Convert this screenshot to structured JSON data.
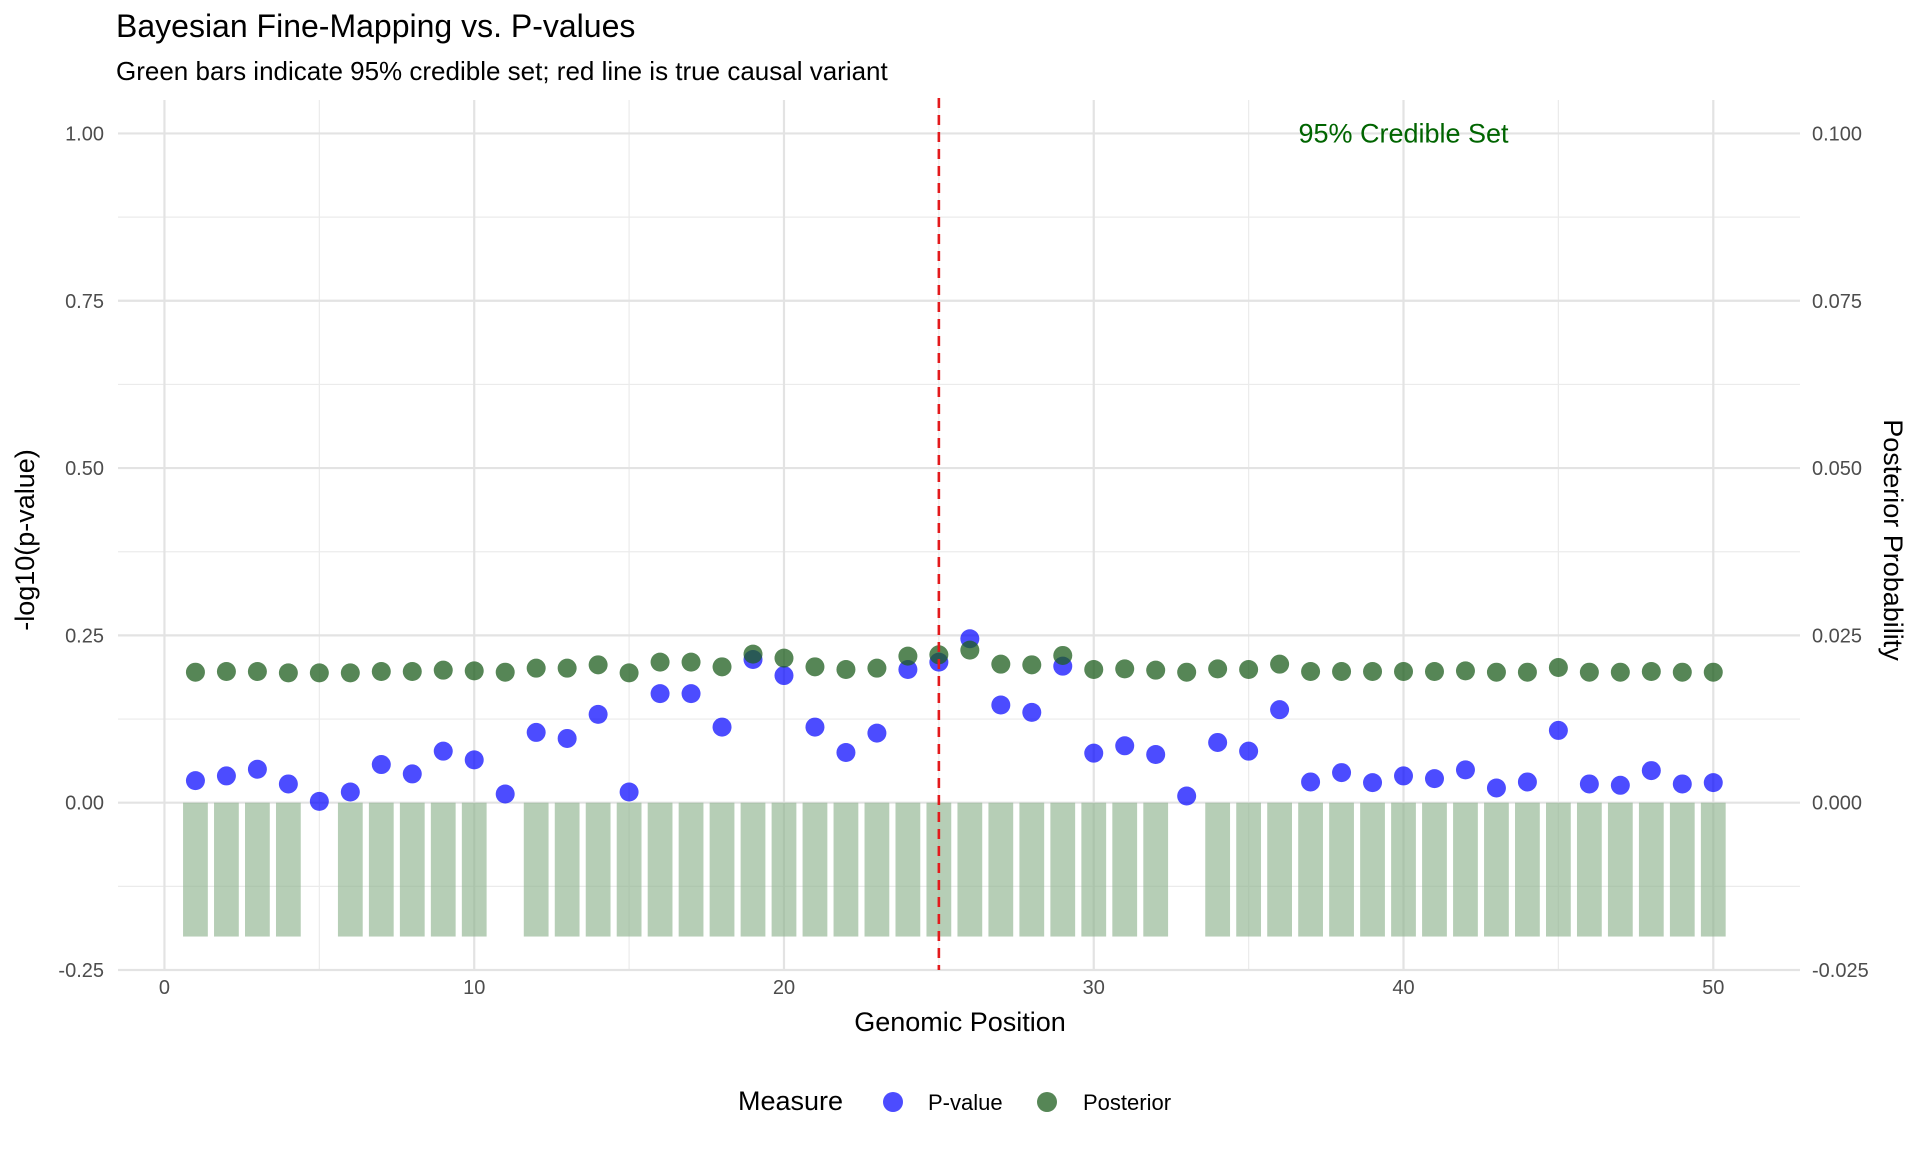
{
  "chart_data": {
    "type": "scatter",
    "title": "Bayesian Fine-Mapping vs. P-values",
    "subtitle": "Green bars indicate 95% credible set; red line is true causal variant",
    "xlabel": "Genomic Position",
    "ylabel": "-log10(p-value)",
    "y2label": "Posterior Probability",
    "xlim": [
      -1.5,
      52.8
    ],
    "ylim": [
      -0.25,
      1.05
    ],
    "y2lim": [
      -0.025,
      0.105
    ],
    "x_ticks": [
      0,
      10,
      20,
      30,
      40,
      50
    ],
    "y_ticks": [
      -0.25,
      0.0,
      0.25,
      0.5,
      0.75,
      1.0
    ],
    "y_tick_labels": [
      "-0.25",
      "0.00",
      "0.25",
      "0.50",
      "0.75",
      "1.00"
    ],
    "y2_tick_labels": [
      "-0.025",
      "0.000",
      "0.025",
      "0.050",
      "0.075",
      "0.100"
    ],
    "grid": true,
    "legend_position": "bottom",
    "legend": {
      "title": "Measure",
      "items": [
        {
          "label": "P-value",
          "color": "#0000FF"
        },
        {
          "label": "Posterior",
          "color": "#1E5E1E"
        }
      ]
    },
    "annotation": {
      "text": "95% Credible Set",
      "x": 40,
      "y": 1.0,
      "color": "#006400"
    },
    "causal_variant_x": 25,
    "causal_line_color": "#E31A1C",
    "credible_set_bar": {
      "bottom": -0.2,
      "top": 0.0,
      "color": "#8FB48F"
    },
    "credible_set_positions": [
      1,
      2,
      3,
      4,
      6,
      7,
      8,
      9,
      10,
      12,
      13,
      14,
      15,
      16,
      17,
      18,
      19,
      20,
      21,
      22,
      23,
      24,
      25,
      26,
      27,
      28,
      29,
      30,
      31,
      32,
      34,
      35,
      36,
      37,
      38,
      39,
      40,
      41,
      42,
      43,
      44,
      45,
      46,
      47,
      48,
      49,
      50
    ],
    "series": [
      {
        "name": "P-value",
        "color": "#0000FF",
        "x": [
          1,
          2,
          3,
          4,
          5,
          6,
          7,
          8,
          9,
          10,
          11,
          12,
          13,
          14,
          15,
          16,
          17,
          18,
          19,
          20,
          21,
          22,
          23,
          24,
          25,
          26,
          27,
          28,
          29,
          30,
          31,
          32,
          33,
          34,
          35,
          36,
          37,
          38,
          39,
          40,
          41,
          42,
          43,
          44,
          45,
          46,
          47,
          48,
          49,
          50
        ],
        "values": [
          0.033,
          0.04,
          0.05,
          0.028,
          0.002,
          0.016,
          0.057,
          0.043,
          0.077,
          0.064,
          0.013,
          0.105,
          0.096,
          0.132,
          0.016,
          0.163,
          0.163,
          0.113,
          0.214,
          0.19,
          0.113,
          0.075,
          0.104,
          0.199,
          0.21,
          0.245,
          0.146,
          0.135,
          0.204,
          0.074,
          0.085,
          0.072,
          0.01,
          0.09,
          0.077,
          0.139,
          0.031,
          0.045,
          0.03,
          0.04,
          0.036,
          0.049,
          0.022,
          0.031,
          0.108,
          0.028,
          0.026,
          0.048,
          0.028,
          0.03
        ]
      },
      {
        "name": "Posterior",
        "color": "#1E5E1E",
        "x": [
          1,
          2,
          3,
          4,
          5,
          6,
          7,
          8,
          9,
          10,
          11,
          12,
          13,
          14,
          15,
          16,
          17,
          18,
          19,
          20,
          21,
          22,
          23,
          24,
          25,
          26,
          27,
          28,
          29,
          30,
          31,
          32,
          33,
          34,
          35,
          36,
          37,
          38,
          39,
          40,
          41,
          42,
          43,
          44,
          45,
          46,
          47,
          48,
          49,
          50
        ],
        "values": [
          0.0195,
          0.0196,
          0.0196,
          0.0194,
          0.0194,
          0.0194,
          0.0196,
          0.0196,
          0.0198,
          0.0197,
          0.0195,
          0.0201,
          0.0201,
          0.0206,
          0.0194,
          0.021,
          0.021,
          0.0203,
          0.0222,
          0.0216,
          0.0203,
          0.0199,
          0.0201,
          0.0219,
          0.0221,
          0.0228,
          0.0207,
          0.0206,
          0.022,
          0.0199,
          0.02,
          0.0198,
          0.0195,
          0.02,
          0.0199,
          0.0207,
          0.0196,
          0.0196,
          0.0196,
          0.0196,
          0.0196,
          0.0197,
          0.0195,
          0.0195,
          0.0202,
          0.0195,
          0.0195,
          0.0196,
          0.0195,
          0.0195
        ]
      }
    ]
  }
}
